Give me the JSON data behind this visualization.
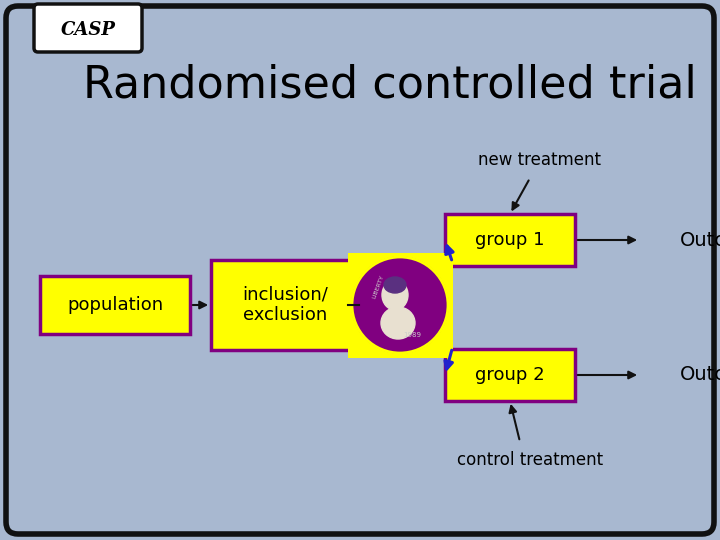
{
  "title": "Randomised controlled trial",
  "casp_label": "CASP",
  "bg_color": "#a8b8d0",
  "box_color": "#ffff00",
  "box_edge_color": "#800080",
  "main_border_color": "#111111",
  "title_fontsize": 32,
  "labels": {
    "population": "population",
    "inclusion": "inclusion/\nexclusion",
    "group1": "group 1",
    "group2": "group 2",
    "outcome1": "Outcome",
    "outcome2": "Outcome",
    "new_treatment": "new treatment",
    "control_treatment": "control treatment"
  },
  "arrow_color_blue": "#2222cc",
  "arrow_color_black": "#111111",
  "coin_bg": "#800080",
  "coin_yellow": "#ffff00",
  "fig_width": 7.2,
  "fig_height": 5.4,
  "dpi": 100
}
